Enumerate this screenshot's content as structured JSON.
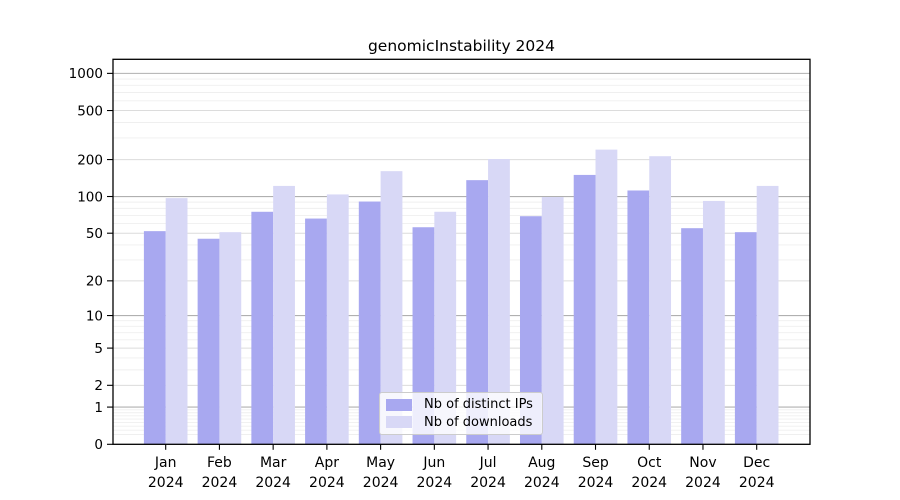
{
  "chart_data": {
    "type": "bar",
    "title": "genomicInstability 2024",
    "xlabel": "",
    "ylabel": "",
    "categories": [
      "Jan",
      "Feb",
      "Mar",
      "Apr",
      "May",
      "Jun",
      "Jul",
      "Aug",
      "Sep",
      "Oct",
      "Nov",
      "Dec"
    ],
    "x_tick_sublabel": "2024",
    "series": [
      {
        "name": "Nb of distinct IPs",
        "color": "#a8a8f0",
        "values": [
          52,
          45,
          75,
          66,
          91,
          56,
          136,
          69,
          150,
          112,
          55,
          51
        ]
      },
      {
        "name": "Nb of downloads",
        "color": "#d8d8f6",
        "values": [
          97,
          51,
          122,
          104,
          161,
          75,
          202,
          99,
          241,
          213,
          92,
          122
        ]
      }
    ],
    "yscale": "log1p",
    "y_ticks": [
      0,
      1,
      2,
      5,
      10,
      20,
      50,
      100,
      200,
      500,
      1000
    ],
    "ylim": [
      0,
      1300
    ],
    "grid": true,
    "legend_position": "inside-bottom-center"
  }
}
